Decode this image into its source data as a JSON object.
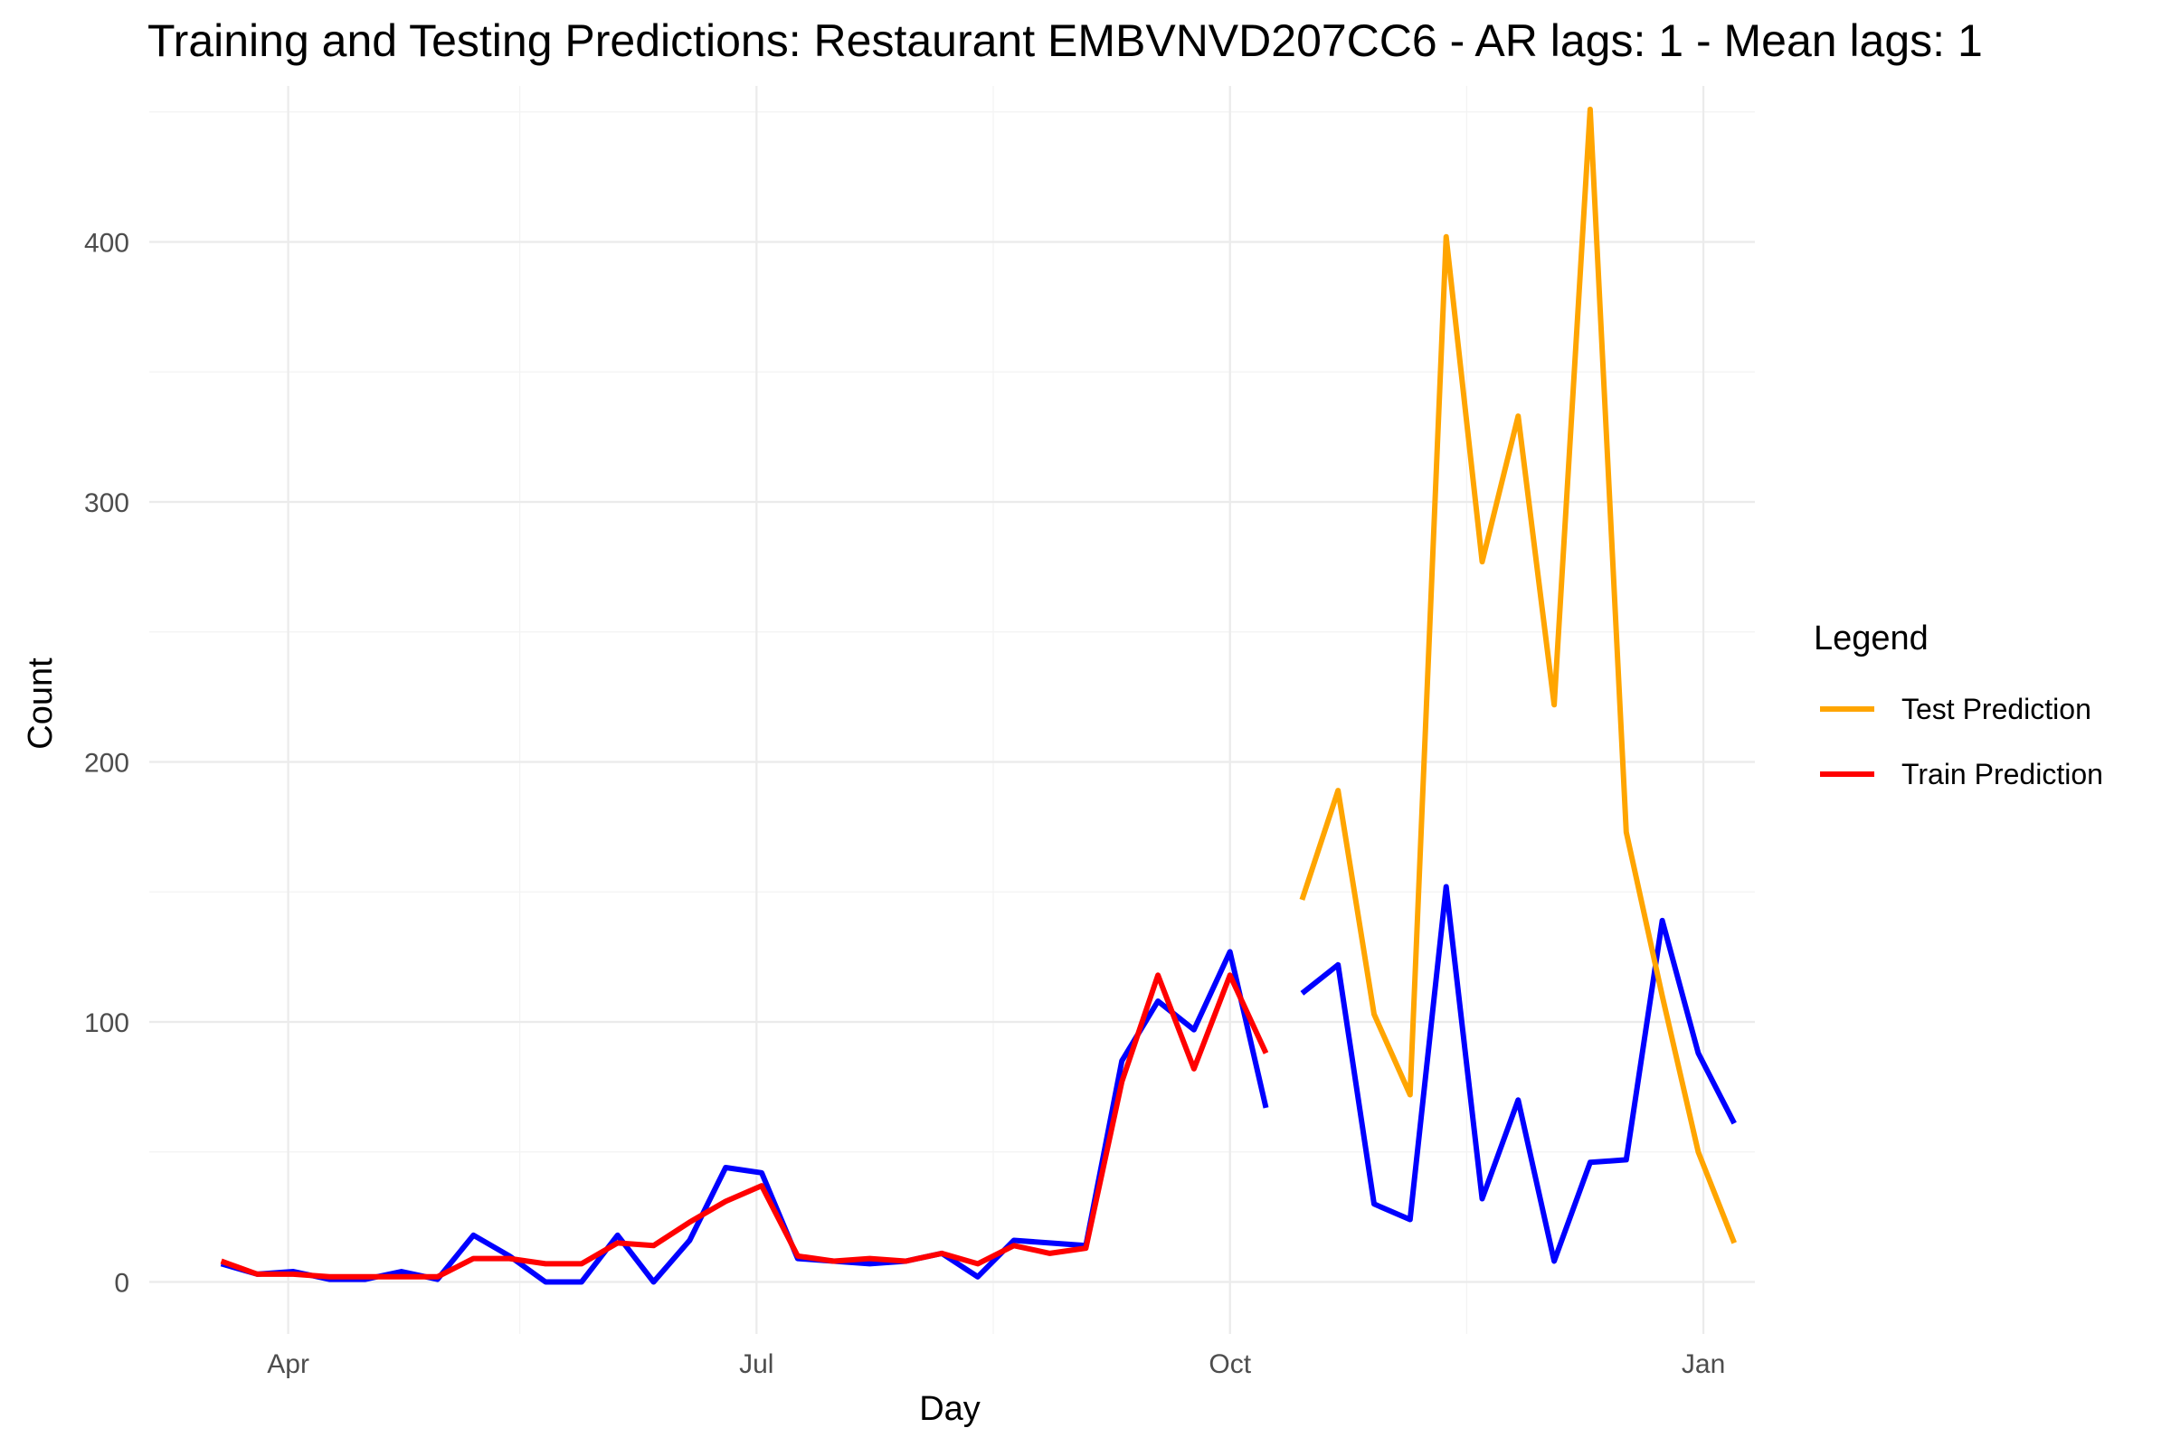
{
  "chart_data": {
    "type": "line",
    "title": "Training and Testing Predictions: Restaurant EMBVNVD207CC6 - AR lags: 1 - Mean lags: 1",
    "xlabel": "Day",
    "ylabel": "Count",
    "x_range": [
      "2023-03-05",
      "2024-01-11"
    ],
    "ylim": [
      -20,
      460
    ],
    "x_ticks": [
      {
        "date": "2023-04-01",
        "label": "Apr"
      },
      {
        "date": "2023-07-01",
        "label": "Jul"
      },
      {
        "date": "2023-10-01",
        "label": "Oct"
      },
      {
        "date": "2024-01-01",
        "label": "Jan"
      }
    ],
    "x_minor_ticks": [
      "2023-05-16",
      "2023-08-16",
      "2023-11-16"
    ],
    "y_ticks": [
      0,
      100,
      200,
      300,
      400
    ],
    "y_minor_ticks": [
      50,
      150,
      250,
      350,
      450
    ],
    "grid": true,
    "legend": {
      "title": "Legend",
      "position": "right",
      "entries": [
        {
          "label": "Test Prediction",
          "color": "#FFA500"
        },
        {
          "label": "Train Prediction",
          "color": "#FF0000"
        }
      ]
    },
    "series": [
      {
        "color": "#0000FF",
        "points": [
          [
            "2023-03-19",
            7
          ],
          [
            "2023-03-26",
            3
          ],
          [
            "2023-04-02",
            4
          ],
          [
            "2023-04-09",
            1
          ],
          [
            "2023-04-16",
            1
          ],
          [
            "2023-04-23",
            4
          ],
          [
            "2023-04-30",
            1
          ],
          [
            "2023-05-07",
            18
          ],
          [
            "2023-05-14",
            10
          ],
          [
            "2023-05-21",
            0
          ],
          [
            "2023-05-28",
            0
          ],
          [
            "2023-06-04",
            18
          ],
          [
            "2023-06-11",
            0
          ],
          [
            "2023-06-18",
            16
          ],
          [
            "2023-06-25",
            44
          ],
          [
            "2023-07-02",
            42
          ],
          [
            "2023-07-09",
            9
          ],
          [
            "2023-07-16",
            8
          ],
          [
            "2023-07-23",
            7
          ],
          [
            "2023-07-30",
            8
          ],
          [
            "2023-08-06",
            11
          ],
          [
            "2023-08-13",
            2
          ],
          [
            "2023-08-20",
            16
          ],
          [
            "2023-08-27",
            15
          ],
          [
            "2023-09-03",
            14
          ],
          [
            "2023-09-10",
            85
          ],
          [
            "2023-09-17",
            108
          ],
          [
            "2023-09-24",
            97
          ],
          [
            "2023-10-01",
            127
          ],
          [
            "2023-10-08",
            67
          ]
        ]
      },
      {
        "color": "#0000FF",
        "points": [
          [
            "2023-10-15",
            111
          ],
          [
            "2023-10-22",
            122
          ],
          [
            "2023-10-29",
            30
          ],
          [
            "2023-11-05",
            24
          ],
          [
            "2023-11-12",
            152
          ],
          [
            "2023-11-19",
            32
          ],
          [
            "2023-11-26",
            70
          ],
          [
            "2023-12-03",
            8
          ],
          [
            "2023-12-10",
            46
          ],
          [
            "2023-12-17",
            47
          ],
          [
            "2023-12-24",
            139
          ],
          [
            "2023-12-31",
            88
          ],
          [
            "2024-01-07",
            61
          ]
        ]
      },
      {
        "name": "Train Prediction",
        "color": "#FF0000",
        "points": [
          [
            "2023-03-19",
            8
          ],
          [
            "2023-03-26",
            3
          ],
          [
            "2023-04-02",
            3
          ],
          [
            "2023-04-09",
            2
          ],
          [
            "2023-04-16",
            2
          ],
          [
            "2023-04-23",
            2
          ],
          [
            "2023-04-30",
            2
          ],
          [
            "2023-05-07",
            9
          ],
          [
            "2023-05-14",
            9
          ],
          [
            "2023-05-21",
            7
          ],
          [
            "2023-05-28",
            7
          ],
          [
            "2023-06-04",
            15
          ],
          [
            "2023-06-11",
            14
          ],
          [
            "2023-06-18",
            23
          ],
          [
            "2023-06-25",
            31
          ],
          [
            "2023-07-02",
            37
          ],
          [
            "2023-07-09",
            10
          ],
          [
            "2023-07-16",
            8
          ],
          [
            "2023-07-23",
            9
          ],
          [
            "2023-07-30",
            8
          ],
          [
            "2023-08-06",
            11
          ],
          [
            "2023-08-13",
            7
          ],
          [
            "2023-08-20",
            14
          ],
          [
            "2023-08-27",
            11
          ],
          [
            "2023-09-03",
            13
          ],
          [
            "2023-09-10",
            77
          ],
          [
            "2023-09-17",
            118
          ],
          [
            "2023-09-24",
            82
          ],
          [
            "2023-10-01",
            118
          ],
          [
            "2023-10-08",
            88
          ]
        ]
      },
      {
        "name": "Test Prediction",
        "color": "#FFA500",
        "points": [
          [
            "2023-10-15",
            147
          ],
          [
            "2023-10-22",
            189
          ],
          [
            "2023-10-29",
            103
          ],
          [
            "2023-11-05",
            72
          ],
          [
            "2023-11-12",
            402
          ],
          [
            "2023-11-19",
            277
          ],
          [
            "2023-11-26",
            333
          ],
          [
            "2023-12-03",
            222
          ],
          [
            "2023-12-10",
            451
          ],
          [
            "2023-12-17",
            173
          ],
          [
            "2023-12-24",
            110
          ],
          [
            "2023-12-31",
            50
          ],
          [
            "2024-01-07",
            15
          ]
        ]
      }
    ]
  }
}
